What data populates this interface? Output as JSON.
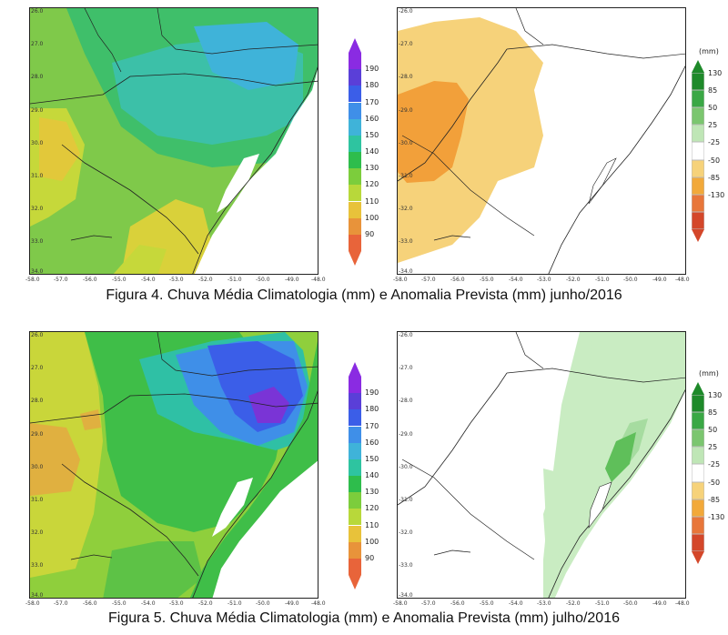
{
  "figure4": {
    "caption": "Figura 4. Chuva Média Climatologia (mm) e Anomalia Prevista (mm) junho/2016",
    "left_map": {
      "lat_ticks": [
        "26.0",
        "27.0",
        "28.0",
        "29.0",
        "30.0",
        "31.0",
        "32.0",
        "33.0",
        "34.0"
      ],
      "lon_ticks": [
        "-58.0",
        "-57.0",
        "-56.0",
        "-55.0",
        "-54.0",
        "-53.0",
        "-52.0",
        "-51.0",
        "-50.0",
        "-49.0",
        "-48.0"
      ]
    },
    "right_map": {
      "lat_ticks": [
        "-26.0",
        "-27.0",
        "-28.0",
        "-29.0",
        "-30.0",
        "-31.0",
        "-32.0",
        "-33.0",
        "-34.0"
      ],
      "lon_ticks": [
        "-58.0",
        "-57.0",
        "-56.0",
        "-55.0",
        "-54.0",
        "-53.0",
        "-52.0",
        "-51.0",
        "-50.0",
        "-49.0",
        "-48.0"
      ]
    }
  },
  "figure5": {
    "caption": "Figura 5. Chuva Média Climatologia (mm) e Anomalia Prevista (mm) julho/2016",
    "left_map": {
      "lat_ticks": [
        "26.0",
        "27.0",
        "28.0",
        "29.0",
        "30.0",
        "31.0",
        "32.0",
        "33.0",
        "34.0"
      ],
      "lon_ticks": [
        "-58.0",
        "-57.0",
        "-56.0",
        "-55.0",
        "-54.0",
        "-53.0",
        "-52.0",
        "-51.0",
        "-50.0",
        "-49.0",
        "-48.0"
      ]
    },
    "right_map": {
      "lat_ticks": [
        "-26.0",
        "-27.0",
        "-28.0",
        "-29.0",
        "-30.0",
        "-31.0",
        "-32.0",
        "-33.0",
        "-34.0"
      ],
      "lon_ticks": [
        "-58.0",
        "-57.0",
        "-56.0",
        "-55.0",
        "-54.0",
        "-53.0",
        "-52.0",
        "-51.0",
        "-50.0",
        "-49.0",
        "-48.0"
      ]
    }
  },
  "climatology_colorbar": {
    "labels": [
      "190",
      "180",
      "170",
      "160",
      "150",
      "140",
      "130",
      "120",
      "110",
      "100",
      "90"
    ],
    "colors": [
      "#8a2be2",
      "#5a3fd8",
      "#3b5ee8",
      "#3f8fe8",
      "#3fb3d9",
      "#2ec4a0",
      "#2ebd4c",
      "#7ccd3c",
      "#b8d83a",
      "#e8c23a",
      "#e8933a",
      "#e8643a"
    ]
  },
  "anomaly_colorbar": {
    "unit": "(mm)",
    "labels": [
      "130",
      "85",
      "50",
      "25",
      "-25",
      "-50",
      "-85",
      "-130"
    ],
    "colors": [
      "#1e8a2a",
      "#3aa845",
      "#7bc66f",
      "#bfe6b6",
      "#ffffff",
      "#f6d27a",
      "#f2a93a",
      "#e8763a",
      "#d4472a"
    ]
  }
}
